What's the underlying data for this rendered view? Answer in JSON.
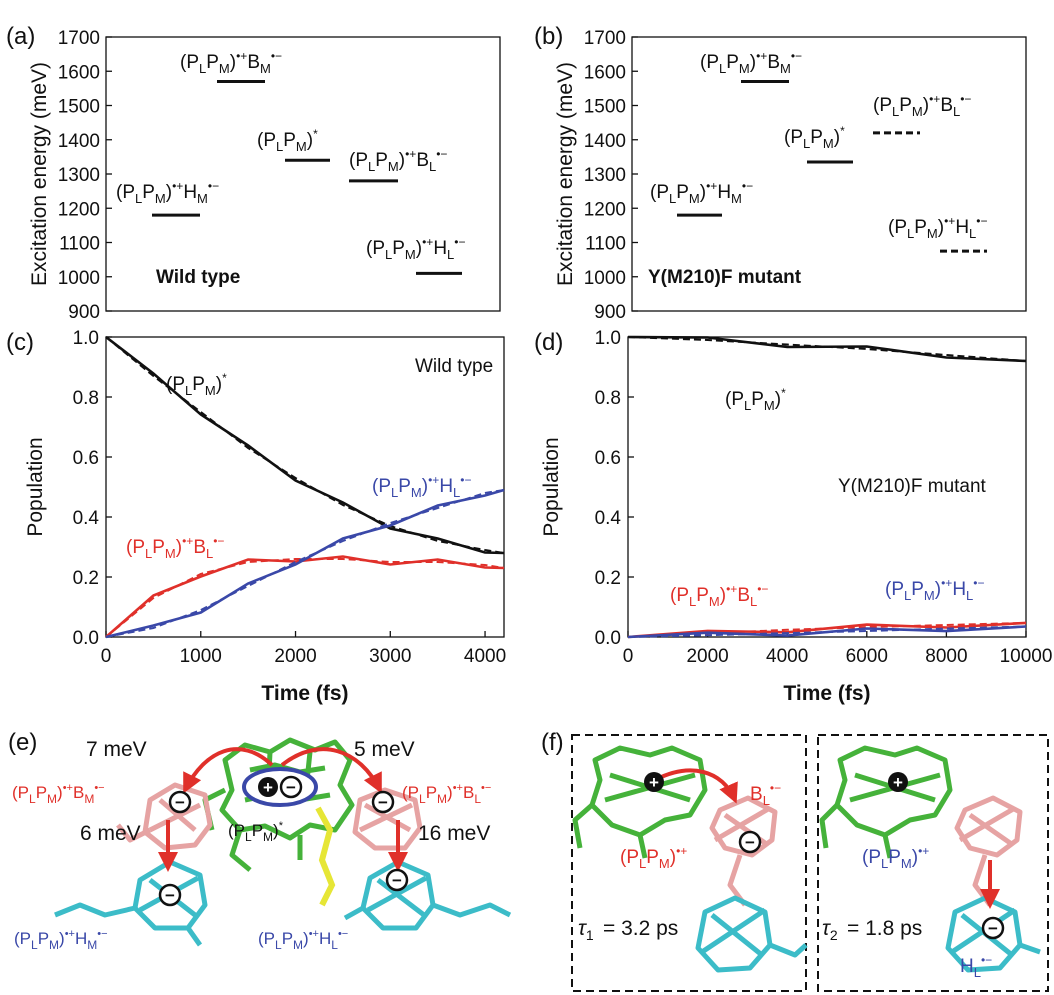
{
  "panels": {
    "a": {
      "letter": "(a)",
      "ylabel": "Excitation energy (meV)",
      "yticks": [
        "1700",
        "1600",
        "1500",
        "1400",
        "1300",
        "1200",
        "1100",
        "1000",
        "900"
      ],
      "note": "Wild type"
    },
    "b": {
      "letter": "(b)",
      "ylabel": "Excitation energy (meV)",
      "yticks": [
        "1700",
        "1600",
        "1500",
        "1400",
        "1300",
        "1200",
        "1100",
        "1000",
        "900"
      ],
      "note": "Y(M210)F mutant"
    },
    "c": {
      "letter": "(c)",
      "ylabel": "Population",
      "xlabel": "Time (fs)",
      "yticks": [
        "1.0",
        "0.8",
        "0.6",
        "0.4",
        "0.2",
        "0.0"
      ],
      "xticks": [
        "0",
        "1000",
        "2000",
        "3000",
        "4000"
      ],
      "note": "Wild type"
    },
    "d": {
      "letter": "(d)",
      "ylabel": "Population",
      "xlabel": "Time (fs)",
      "yticks": [
        "1.0",
        "0.8",
        "0.6",
        "0.4",
        "0.2",
        "0.0"
      ],
      "xticks": [
        "0",
        "2000",
        "4000",
        "6000",
        "8000",
        "10000"
      ],
      "note": "Y(M210)F mutant"
    },
    "e": {
      "letter": "(e)",
      "coupling_labels": [
        "7 meV",
        "5 meV",
        "6 meV",
        "16 meV"
      ]
    },
    "f": {
      "letter": "(f)",
      "tau1": "= 3.2 ps",
      "tau2": "= 1.8 ps"
    }
  },
  "colors": {
    "black": "#111111",
    "red": "#e0302a",
    "blue": "#3a48a8",
    "green": "#45b23a",
    "pink": "#e6a3a3",
    "cyan": "#3cbcc8",
    "yellow": "#e6e636"
  },
  "chart_data": [
    {
      "type": "energy-level",
      "panel": "a",
      "ylabel": "Excitation energy (meV)",
      "ylim": [
        900,
        1700
      ],
      "note": "Wild type",
      "levels": [
        {
          "state": "(PLPM)•+HM•−",
          "energy": 1180,
          "style": "solid"
        },
        {
          "state": "(PLPM)•+BM•−",
          "energy": 1570,
          "style": "solid"
        },
        {
          "state": "(PLPM)*",
          "energy": 1340,
          "style": "solid"
        },
        {
          "state": "(PLPM)•+BL•−",
          "energy": 1280,
          "style": "solid"
        },
        {
          "state": "(PLPM)•+HL•−",
          "energy": 1010,
          "style": "solid"
        }
      ]
    },
    {
      "type": "energy-level",
      "panel": "b",
      "ylabel": "Excitation energy (meV)",
      "ylim": [
        900,
        1700
      ],
      "note": "Y(M210)F mutant",
      "levels": [
        {
          "state": "(PLPM)•+HM•−",
          "energy": 1180,
          "style": "solid"
        },
        {
          "state": "(PLPM)•+BM•−",
          "energy": 1570,
          "style": "solid"
        },
        {
          "state": "(PLPM)*",
          "energy": 1335,
          "style": "solid"
        },
        {
          "state": "(PLPM)•+BL•−",
          "energy": 1420,
          "style": "dashed"
        },
        {
          "state": "(PLPM)•+HL•−",
          "energy": 1075,
          "style": "dashed"
        }
      ]
    },
    {
      "type": "line",
      "panel": "c",
      "xlabel": "Time (fs)",
      "ylabel": "Population",
      "xlim": [
        0,
        4200
      ],
      "ylim": [
        0,
        1
      ],
      "note": "Wild type",
      "x": [
        0,
        500,
        1000,
        1500,
        2000,
        2500,
        3000,
        3500,
        4000,
        4200
      ],
      "series": [
        {
          "name": "(PLPM)*",
          "color": "black",
          "values": [
            1.0,
            0.87,
            0.75,
            0.63,
            0.53,
            0.44,
            0.37,
            0.32,
            0.29,
            0.28
          ]
        },
        {
          "name": "(PLPM)•+BL•−",
          "color": "red",
          "values": [
            0.0,
            0.13,
            0.21,
            0.25,
            0.26,
            0.26,
            0.25,
            0.25,
            0.24,
            0.23
          ]
        },
        {
          "name": "(PLPM)•+HL•−",
          "color": "blue",
          "values": [
            0.0,
            0.03,
            0.09,
            0.17,
            0.25,
            0.32,
            0.38,
            0.43,
            0.48,
            0.49
          ]
        }
      ]
    },
    {
      "type": "line",
      "panel": "d",
      "xlabel": "Time (fs)",
      "ylabel": "Population",
      "xlim": [
        0,
        10000
      ],
      "ylim": [
        0,
        1
      ],
      "note": "Y(M210)F mutant",
      "x": [
        0,
        2000,
        4000,
        6000,
        8000,
        10000
      ],
      "series": [
        {
          "name": "(PLPM)*",
          "color": "black",
          "values": [
            1.0,
            0.99,
            0.975,
            0.96,
            0.94,
            0.92
          ]
        },
        {
          "name": "(PLPM)•+BL•−",
          "color": "red",
          "values": [
            0.0,
            0.012,
            0.024,
            0.033,
            0.04,
            0.047
          ]
        },
        {
          "name": "(PLPM)•+HL•−",
          "color": "blue",
          "values": [
            0.0,
            0.006,
            0.013,
            0.02,
            0.028,
            0.035
          ]
        }
      ]
    }
  ]
}
